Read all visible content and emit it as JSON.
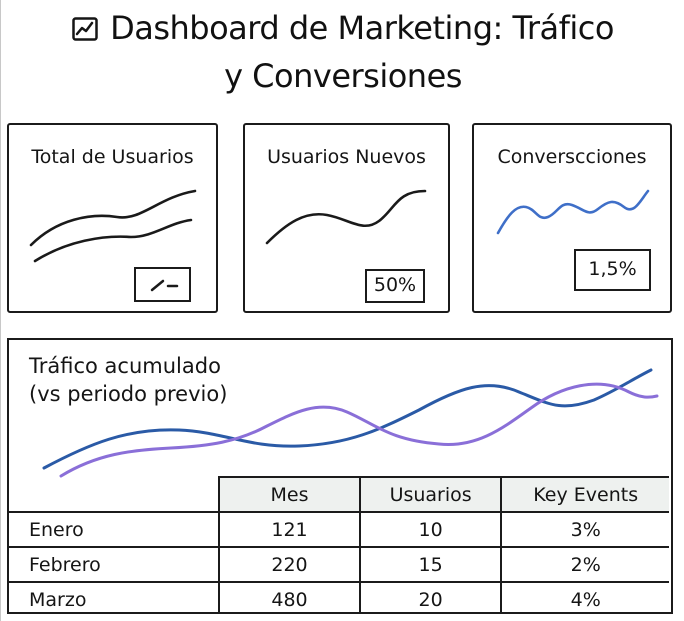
{
  "header": {
    "title_line1": "Dashboard de Marketing: Tráfico",
    "title_line2": "y Conversiones",
    "icon": "trending-chart-icon"
  },
  "kpis": [
    {
      "title": "Total de Usuarios",
      "value": "⟋ ⁄ ⸺"
    },
    {
      "title": "Usuarios Nuevos",
      "value": "50%"
    },
    {
      "title": "Converscciones",
      "value": "1,5%"
    }
  ],
  "traffic_panel": {
    "title_line1": "Tráfico acumulado",
    "title_line2": "(vs periodo previo)",
    "series_colors": [
      "#2a5aa6",
      "#8a6fd8"
    ]
  },
  "table": {
    "headers": [
      "",
      "Mes",
      "Usuarios",
      "Key Events"
    ],
    "rows": [
      {
        "label": "Enero",
        "mes": "121",
        "usuarios": "10",
        "key_events": "3%"
      },
      {
        "label": "Febrero",
        "mes": "220",
        "usuarios": "15",
        "key_events": "2%"
      },
      {
        "label": "Marzo",
        "mes": "480",
        "usuarios": "20",
        "key_events": "4%"
      }
    ]
  },
  "colors": {
    "ink": "#1b1b1b",
    "accent_blue": "#2a5aa6",
    "accent_purple": "#8a6fd8",
    "table_header_bg": "#eef1ef"
  }
}
